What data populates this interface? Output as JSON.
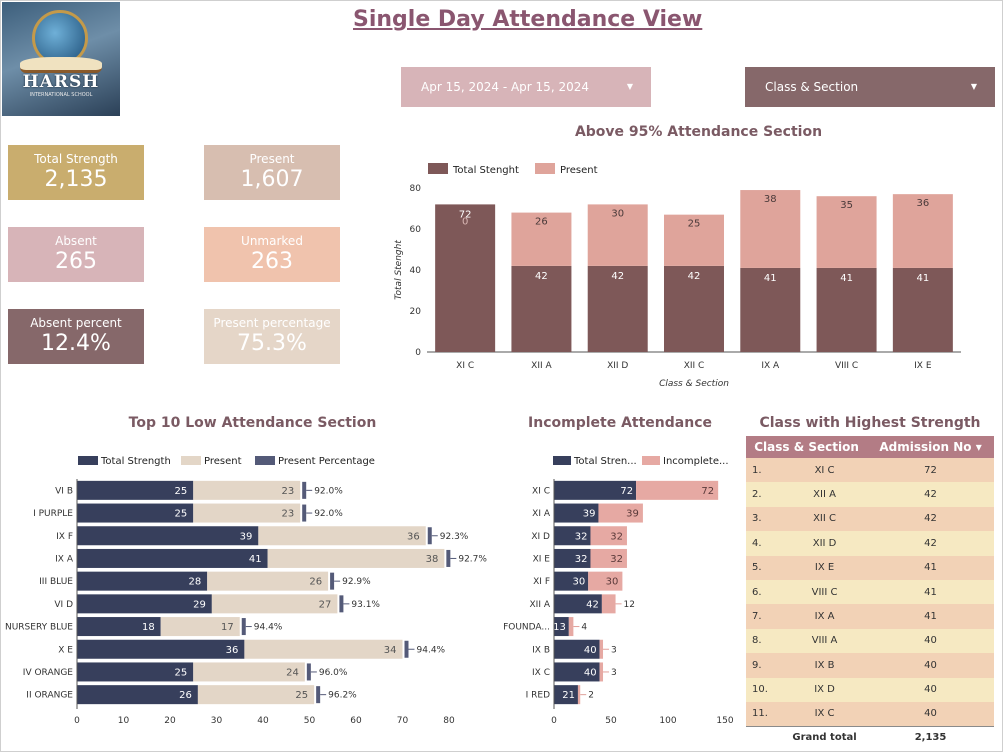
{
  "logo": {
    "name": "HARSH",
    "subtitle": "INTERNATIONAL SCHOOL"
  },
  "title": "Single Day Attendance View",
  "filters": {
    "date_range": "Apr 15, 2024 - Apr 15, 2024",
    "class_section": "Class & Section"
  },
  "kpis": [
    {
      "label": "Total Strength",
      "value": "2,135",
      "color": "#c9ad6e"
    },
    {
      "label": "Present",
      "value": "1,607",
      "color": "#d7beb0"
    },
    {
      "label": "Absent",
      "value": "265",
      "color": "#d7b4b8"
    },
    {
      "label": "Unmarked",
      "value": "263",
      "color": "#f0c3ad"
    },
    {
      "label": "Absent percent",
      "value": "12.4%",
      "color": "#86686a"
    },
    {
      "label": "Present percentage",
      "value": "75.3%",
      "color": "#e5d6c8"
    }
  ],
  "colors": {
    "total_strength_dark": "#7e5858",
    "present_rose": "#dfa49b",
    "navy": "#373f5c",
    "beige": "#e3d6c7",
    "slate": "#545a78",
    "incomplete": "#e6a9a3"
  },
  "chart_data": [
    {
      "id": "above95",
      "type": "bar",
      "title": "Above 95% Attendance Section",
      "xlabel": "Class & Section",
      "ylabel": "Total Stenght",
      "categories": [
        "XI C",
        "XII A",
        "XII D",
        "XII C",
        "IX A",
        "VIII C",
        "IX E"
      ],
      "series": [
        {
          "name": "Total Stenght",
          "values": [
            72,
            42,
            42,
            42,
            41,
            41,
            41
          ]
        },
        {
          "name": "Present",
          "values": [
            0,
            26,
            30,
            25,
            38,
            35,
            36
          ]
        }
      ],
      "ylim": [
        0,
        80
      ],
      "yticks": [
        0,
        20,
        40,
        60,
        80
      ],
      "stacked": true,
      "legend": "top-left"
    },
    {
      "id": "low10",
      "type": "bar",
      "orientation": "horizontal",
      "title": "Top 10 Low Attendance Section",
      "categories": [
        "VI B",
        "I PURPLE",
        "IX F",
        "IX A",
        "III BLUE",
        "VI D",
        "NURSERY BLUE",
        "X E",
        "IV ORANGE",
        "II ORANGE"
      ],
      "series": [
        {
          "name": "Total Strength",
          "values": [
            25,
            25,
            39,
            41,
            28,
            29,
            18,
            36,
            25,
            26
          ]
        },
        {
          "name": "Present",
          "values": [
            23,
            23,
            36,
            38,
            26,
            27,
            17,
            34,
            24,
            25
          ]
        },
        {
          "name": "Present Percentage",
          "values": [
            "92.0%",
            "92.0%",
            "92.3%",
            "92.7%",
            "92.9%",
            "93.1%",
            "94.4%",
            "94.4%",
            "96.0%",
            "96.2%"
          ]
        }
      ],
      "xlim": [
        0,
        80
      ],
      "xticks": [
        0,
        10,
        20,
        30,
        40,
        50,
        60,
        70,
        80
      ],
      "stacked": true,
      "legend": "top"
    },
    {
      "id": "incomplete",
      "type": "bar",
      "orientation": "horizontal",
      "title": "Incomplete Attendance",
      "categories": [
        "XI C",
        "XI A",
        "XI D",
        "XI E",
        "XI F",
        "XII A",
        "FOUNDA...",
        "IX B",
        "IX C",
        "I RED"
      ],
      "series": [
        {
          "name": "Total Stren...",
          "values": [
            72,
            39,
            32,
            32,
            30,
            42,
            13,
            40,
            40,
            21
          ]
        },
        {
          "name": "Incomplete...",
          "values": [
            72,
            39,
            32,
            32,
            30,
            12,
            4,
            3,
            3,
            2
          ]
        }
      ],
      "xlim": [
        0,
        150
      ],
      "xticks": [
        0,
        50,
        100,
        150
      ],
      "stacked": true,
      "legend": "top"
    }
  ],
  "table": {
    "title": "Class with Highest Strength",
    "headers": [
      "Class & Section",
      "Admission No"
    ],
    "sort_indicator": "▾",
    "rows": [
      {
        "idx": "1.",
        "cls": "XI C",
        "num": "72"
      },
      {
        "idx": "2.",
        "cls": "XII A",
        "num": "42"
      },
      {
        "idx": "3.",
        "cls": "XII C",
        "num": "42"
      },
      {
        "idx": "4.",
        "cls": "XII D",
        "num": "42"
      },
      {
        "idx": "5.",
        "cls": "IX E",
        "num": "41"
      },
      {
        "idx": "6.",
        "cls": "VIII C",
        "num": "41"
      },
      {
        "idx": "7.",
        "cls": "IX A",
        "num": "41"
      },
      {
        "idx": "8.",
        "cls": "VIII A",
        "num": "40"
      },
      {
        "idx": "9.",
        "cls": "IX B",
        "num": "40"
      },
      {
        "idx": "10.",
        "cls": "IX D",
        "num": "40"
      },
      {
        "idx": "11.",
        "cls": "IX C",
        "num": "40"
      }
    ],
    "total_label": "Grand total",
    "total_value": "2,135"
  }
}
